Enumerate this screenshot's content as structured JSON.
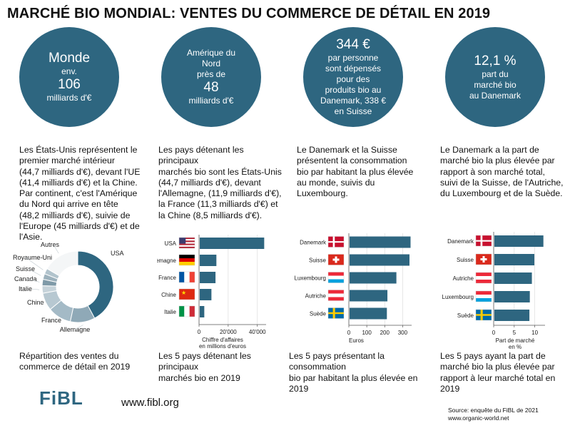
{
  "title": "MARCHÉ BIO MONDIAL: VENTES DU COMMERCE DE DÉTAIL EN 2019",
  "circles": [
    {
      "l1": "Monde",
      "l2": "env.",
      "l3": "106",
      "l4": "milliards d'€"
    },
    {
      "l1": "Amérique du",
      "l2": "Nord",
      "l3": "près de",
      "l4": "48",
      "l5": "milliards d'€"
    },
    {
      "l1": "344 €",
      "l2": "par personne",
      "l3": "sont dépensés",
      "l4": "pour des",
      "l5": "produits bio au",
      "l6": "Danemark, 338 €",
      "l7": "en Suisse"
    },
    {
      "l1": "12,1 %",
      "l2": "part du",
      "l3": "marché bio",
      "l4": "au Danemark"
    }
  ],
  "paragraphs": [
    [
      "Les États-Unis représentent le",
      "premier marché intérieur",
      "(44,7 milliards d'€), devant l'UE",
      "(41,4 milliards d'€) et la Chine.",
      "Par continent, c'est l'Amérique",
      "du Nord qui arrive en tête",
      "(48,2 milliards d'€), suivie de",
      "l'Europe (45 milliards d'€) et de",
      "l'Asie."
    ],
    [
      "Les pays détenant les principaux",
      "marchés bio sont les États-Unis",
      "(44,7 milliards d'€), devant",
      "l'Allemagne, (11,9 milliards d'€),",
      "la France (11,3 milliards d'€) et",
      "la Chine (8,5 milliards d'€)."
    ],
    [
      "Le Danemark et la Suisse",
      "présentent la consommation",
      "bio par habitant la plus élevée",
      "au monde, suivis du",
      "Luxembourg."
    ],
    [
      "Le Danemark a la part de",
      "marché bio la plus élevée par",
      "rapport à son marché total,",
      "suivi de la Suisse, de l'Autriche,",
      "du Luxembourg et de la Suède."
    ]
  ],
  "captions": [
    [
      "Répartition des ventes du",
      "commerce de détail en 2019"
    ],
    [
      "Les 5 pays détenant les principaux",
      "marchés bio en 2019"
    ],
    [
      "Les 5 pays présentant la consommation",
      "bio par habitant la plus élevée en 2019"
    ],
    [
      "Les 5 pays ayant la part de",
      "marché bio la plus élevée par",
      "rapport à leur marché total en",
      "2019"
    ]
  ],
  "logo": "FiBL",
  "url": "www.fibl.org",
  "source": [
    "Source: enquête du FiBL de 2021",
    "www.organic-world.net"
  ],
  "colors": {
    "accent": "#2e6680",
    "bar": "#2e6680"
  },
  "chart_data": [
    {
      "type": "pie",
      "categories": [
        "USA",
        "Allemagne",
        "France",
        "Chine",
        "Italie",
        "Canada",
        "Suisse",
        "Royaume-Uni",
        "Autres"
      ],
      "values": [
        44.7,
        11.9,
        11.3,
        8.5,
        3.6,
        3.1,
        2.7,
        2.7,
        17.5
      ],
      "colors": [
        "#2e6680",
        "#8fa9b7",
        "#a4bac6",
        "#b7c8d1",
        "#c6d3da",
        "#7f9aa8",
        "#9cb1bc",
        "#b1c3cc",
        "#f4f6f7"
      ]
    },
    {
      "type": "bar",
      "categories": [
        "USA",
        "Allemagne",
        "France",
        "Chine",
        "Italie"
      ],
      "values": [
        44700,
        11900,
        11300,
        8500,
        3600
      ],
      "flags": [
        "usa",
        "germany",
        "france",
        "china",
        "italy"
      ],
      "xticks": [
        "0",
        "20'000",
        "40'000"
      ],
      "xlim": [
        0,
        46000
      ],
      "xlabel": [
        "Chiffre d'affaires",
        "en millions d'euros"
      ]
    },
    {
      "type": "bar",
      "categories": [
        "Danemark",
        "Suisse",
        "Luxembourg",
        "Autriche",
        "Suède"
      ],
      "values": [
        344,
        338,
        265,
        215,
        212
      ],
      "flags": [
        "denmark",
        "switzerland",
        "luxembourg",
        "austria",
        "sweden"
      ],
      "xticks": [
        "0",
        "100",
        "200",
        "300"
      ],
      "xlim": [
        0,
        350
      ],
      "xlabel": [
        "Euros"
      ]
    },
    {
      "type": "bar",
      "categories": [
        "Danemark",
        "Suisse",
        "Autriche",
        "Luxembourg",
        "Suède"
      ],
      "values": [
        12.1,
        9.9,
        9.3,
        8.8,
        8.7
      ],
      "flags": [
        "denmark",
        "switzerland",
        "austria",
        "luxembourg",
        "sweden"
      ],
      "xticks": [
        "0",
        "5",
        "10"
      ],
      "xlim": [
        0,
        12.5
      ],
      "xlabel": [
        "Part de marché",
        "en %"
      ]
    }
  ]
}
